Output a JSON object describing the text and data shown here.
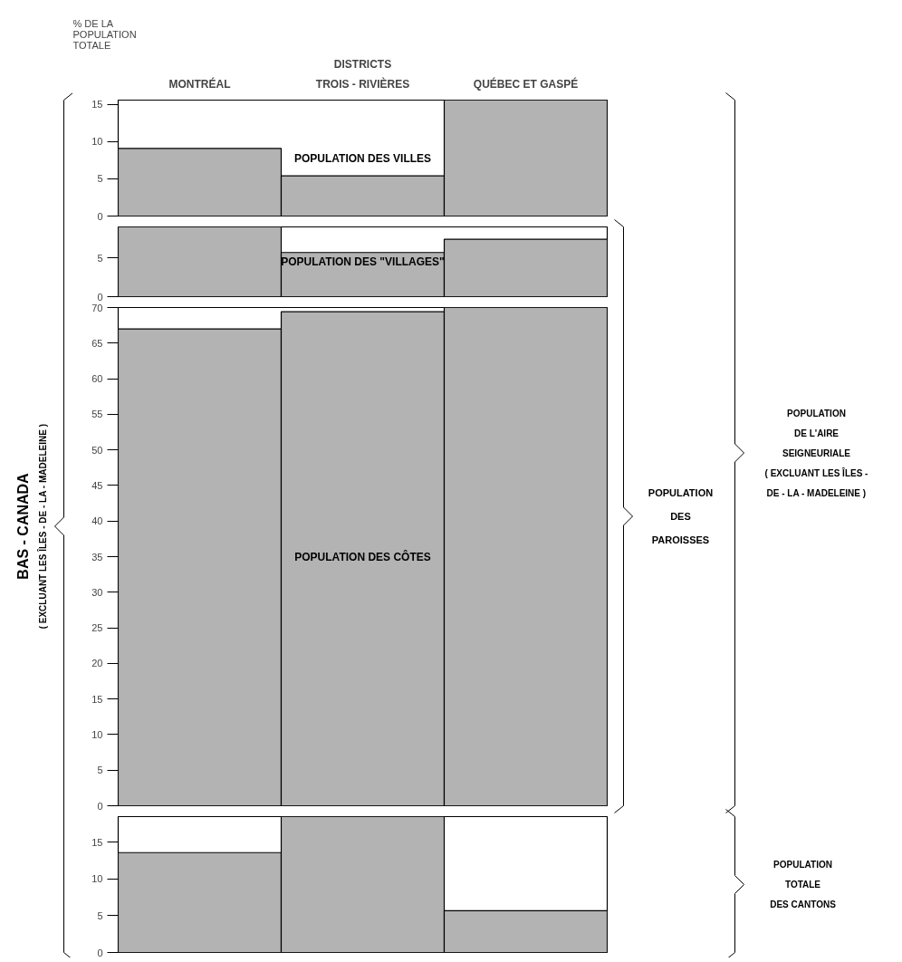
{
  "chart_data": [
    {
      "type": "bar",
      "xlabel": "DISTRICTS",
      "ylabel": "% DE LA\nPOPULATION\nTOTALE",
      "categories": [
        "MONTRÉAL",
        "TROIS - RIVIÈRES",
        "QUÉBEC ET GASPÉ"
      ],
      "values": [
        9.1,
        5.4,
        15.6
      ],
      "color": "#b3b3b3",
      "ylim": [
        0,
        15.6
      ],
      "yticks": [
        0,
        5,
        10,
        15
      ],
      "annotations": [
        "POPULATION DES VILLES"
      ]
    },
    {
      "type": "bar",
      "categories": [
        null,
        null,
        null
      ],
      "values": [
        9,
        5.7,
        7.4
      ],
      "color": "#b3b3b3",
      "ylim": [
        0,
        9
      ],
      "yticks": [
        0,
        5
      ],
      "tick_labels": "y",
      "annotations": [
        "POPULATION DES \"VILLAGES\""
      ]
    },
    {
      "type": "bar",
      "categories": [
        null,
        null,
        null
      ],
      "values": [
        67,
        69.4,
        70
      ],
      "color": "#b3b3b3",
      "ylim": [
        0,
        70
      ],
      "yticks": [
        0,
        5,
        10,
        15,
        20,
        25,
        30,
        35,
        40,
        45,
        50,
        55,
        60,
        65,
        70
      ],
      "tick_labels": "y",
      "annotations": [
        "POPULATION DES CÔTES"
      ]
    },
    {
      "type": "bar",
      "categories": [
        null,
        null,
        null
      ],
      "values": [
        13.6,
        18.5,
        5.7
      ],
      "color": "#b3b3b3",
      "ylim": [
        0,
        18.5
      ],
      "yticks": [
        0,
        5,
        10,
        15
      ],
      "tick_labels": "y"
    },
    {
      "type": "other",
      "annotations": [
        "BAS - CANADA",
        "( EXCLUANT LES ÎLES - DE - LA - MADELEINE )",
        "POPULATION\nDES\nPAROISSES",
        "POPULATION\nDE L'AIRE\nSEIGNEURIALE\n( EXCLUANT LES ÎLES -\nDE - LA - MADELEINE )",
        "POPULATION\nTOTALE\nDES CANTONS"
      ]
    }
  ]
}
